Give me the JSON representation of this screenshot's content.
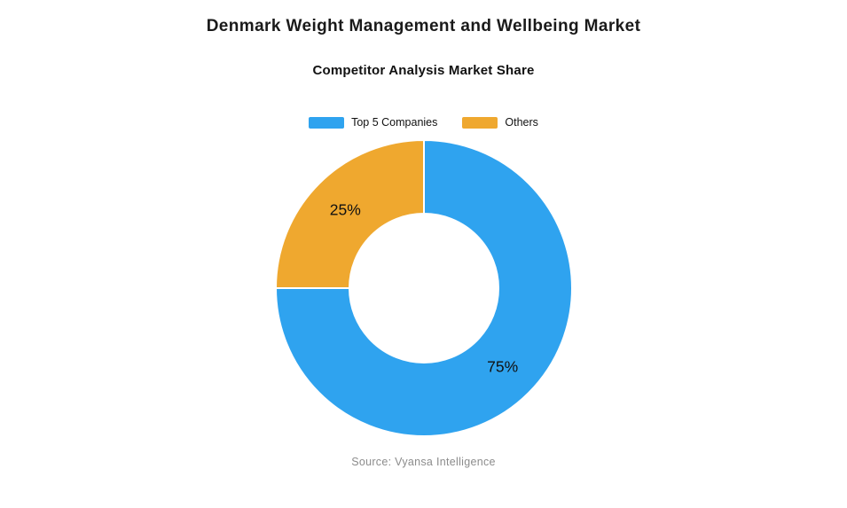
{
  "page": {
    "title": "Denmark Weight Management and Wellbeing Market",
    "subtitle": "Competitor Analysis Market Share",
    "source": "Source: Vyansa Intelligence"
  },
  "chart_data": {
    "type": "pie",
    "variant": "donut",
    "title": "Denmark Weight Management and Wellbeing Market",
    "subtitle": "Competitor Analysis Market Share",
    "source": "Source: Vyansa Intelligence",
    "legend_position": "top",
    "start_angle_deg": 0,
    "direction": "clockwise",
    "inner_radius_ratio": 0.5,
    "label_color": "#111111",
    "divider_color": "#ffffff",
    "segments": [
      {
        "label": "Top 5 Companies",
        "value": 75,
        "display": "75%",
        "color": "#2fa3ef"
      },
      {
        "label": "Others",
        "value": 25,
        "display": "25%",
        "color": "#efa82f"
      }
    ]
  }
}
